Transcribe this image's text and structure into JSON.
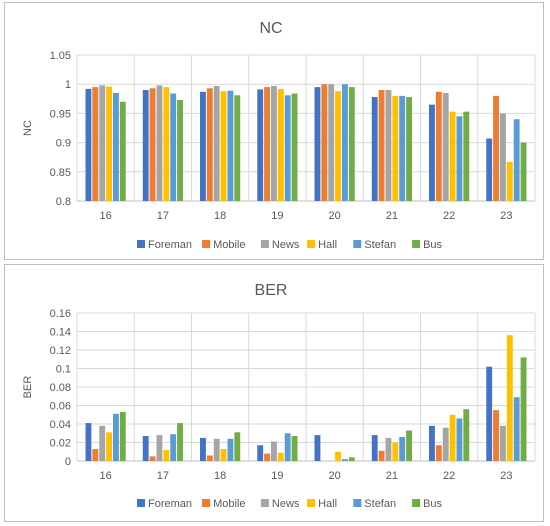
{
  "chart_data": [
    {
      "type": "bar",
      "title": "NC",
      "xlabel": "",
      "ylabel": "NC",
      "ylim": [
        0.8,
        1.05
      ],
      "yticks": [
        "0.8",
        "0.85",
        "0.9",
        "0.95",
        "1",
        "1.05"
      ],
      "grid": true,
      "legend": "bottom",
      "categories": [
        "16",
        "17",
        "18",
        "19",
        "20",
        "21",
        "22",
        "23"
      ],
      "series": [
        {
          "name": "Foreman",
          "color": "#4472C4",
          "values": [
            0.992,
            0.99,
            0.987,
            0.991,
            0.995,
            0.978,
            0.965,
            0.907
          ]
        },
        {
          "name": "Mobile",
          "color": "#ED7D31",
          "values": [
            0.995,
            0.993,
            0.993,
            0.995,
            1.0,
            0.99,
            0.987,
            0.98
          ]
        },
        {
          "name": "News",
          "color": "#A5A5A5",
          "values": [
            0.998,
            0.998,
            0.997,
            0.997,
            1.0,
            0.99,
            0.985,
            0.95
          ]
        },
        {
          "name": "Hall",
          "color": "#FFC000",
          "values": [
            0.996,
            0.995,
            0.988,
            0.992,
            0.988,
            0.98,
            0.953,
            0.867
          ]
        },
        {
          "name": "Stefan",
          "color": "#5B9BD5",
          "values": [
            0.985,
            0.984,
            0.989,
            0.981,
            1.0,
            0.98,
            0.945,
            0.94
          ]
        },
        {
          "name": "Bus",
          "color": "#70AD47",
          "values": [
            0.97,
            0.973,
            0.981,
            0.984,
            0.995,
            0.978,
            0.953,
            0.9
          ]
        }
      ]
    },
    {
      "type": "bar",
      "title": "BER",
      "xlabel": "",
      "ylabel": "BER",
      "ylim": [
        0,
        0.16
      ],
      "yticks": [
        "0",
        "0.02",
        "0.04",
        "0.06",
        "0.08",
        "0.1",
        "0.12",
        "0.14",
        "0.16"
      ],
      "grid": true,
      "legend": "bottom",
      "categories": [
        "16",
        "17",
        "18",
        "19",
        "20",
        "21",
        "22",
        "23"
      ],
      "series": [
        {
          "name": "Foreman",
          "color": "#4472C4",
          "values": [
            0.041,
            0.027,
            0.025,
            0.017,
            0.028,
            0.028,
            0.038,
            0.102
          ]
        },
        {
          "name": "Mobile",
          "color": "#ED7D31",
          "values": [
            0.013,
            0.005,
            0.006,
            0.008,
            0.0,
            0.011,
            0.017,
            0.055
          ]
        },
        {
          "name": "News",
          "color": "#A5A5A5",
          "values": [
            0.038,
            0.028,
            0.024,
            0.021,
            0.0,
            0.025,
            0.036,
            0.038
          ]
        },
        {
          "name": "Hall",
          "color": "#FFC000",
          "values": [
            0.031,
            0.012,
            0.013,
            0.009,
            0.01,
            0.02,
            0.05,
            0.136
          ]
        },
        {
          "name": "Stefan",
          "color": "#5B9BD5",
          "values": [
            0.051,
            0.029,
            0.024,
            0.03,
            0.002,
            0.026,
            0.046,
            0.069
          ]
        },
        {
          "name": "Bus",
          "color": "#70AD47",
          "values": [
            0.053,
            0.041,
            0.031,
            0.027,
            0.004,
            0.033,
            0.056,
            0.112
          ]
        }
      ]
    }
  ]
}
